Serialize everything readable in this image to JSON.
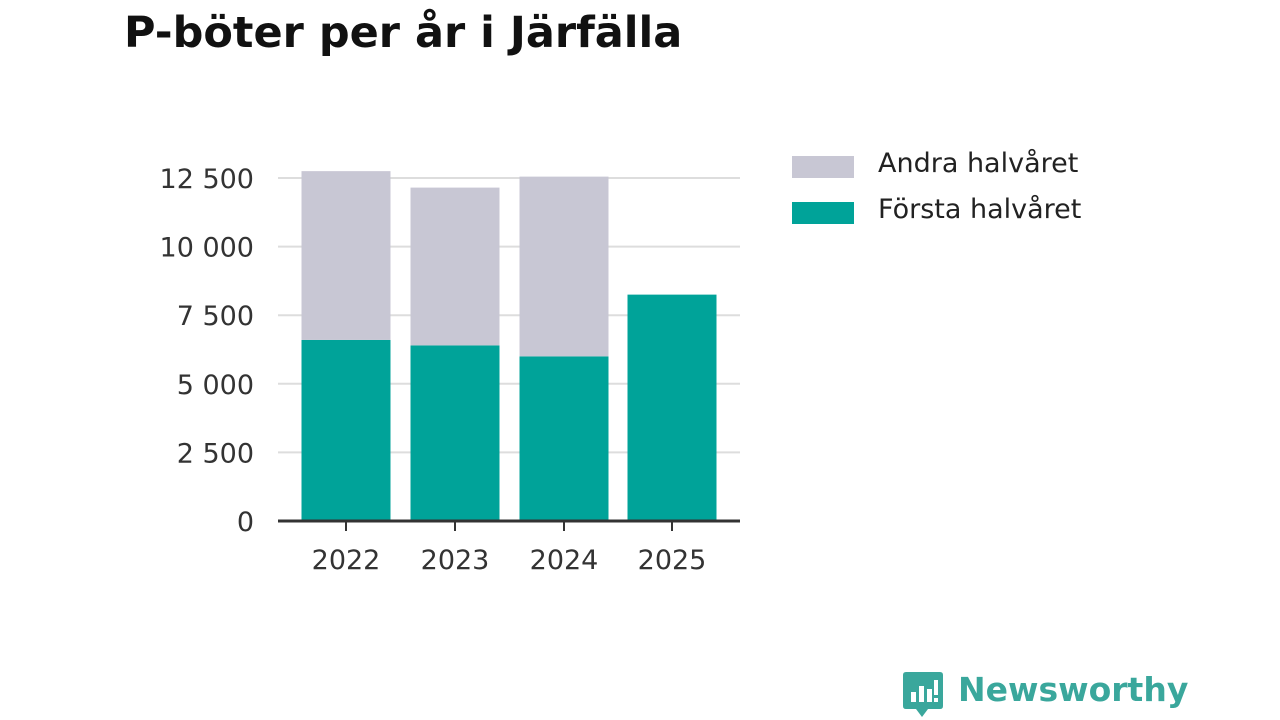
{
  "title": "P-böter per år i Järfälla",
  "brand": {
    "name": "Newsworthy",
    "logo_icon": "newsworthy-logo-icon"
  },
  "colors": {
    "first_half": "#00a399",
    "second_half": "#c8c7d4",
    "axis": "#333333",
    "grid": "#dddddd",
    "brand": "#3aa79c"
  },
  "chart_data": {
    "type": "bar",
    "stacked": true,
    "title": "P-böter per år i Järfälla",
    "categories": [
      "2022",
      "2023",
      "2024",
      "2025"
    ],
    "series": [
      {
        "name": "Första halvåret",
        "values": [
          6600,
          6400,
          6000,
          8250
        ]
      },
      {
        "name": "Andra halvåret",
        "values": [
          6150,
          5750,
          6550,
          0
        ]
      }
    ],
    "ylim": [
      0,
      12500
    ],
    "yticks": [
      0,
      2500,
      5000,
      7500,
      10000,
      12500
    ],
    "ytick_labels": [
      "0",
      "2 500",
      "5 000",
      "7 500",
      "10 000",
      "12 500"
    ],
    "xlabel": "",
    "ylabel": "",
    "grid": true,
    "legend_position": "right",
    "legend": [
      "Andra halvåret",
      "Första halvåret"
    ]
  }
}
